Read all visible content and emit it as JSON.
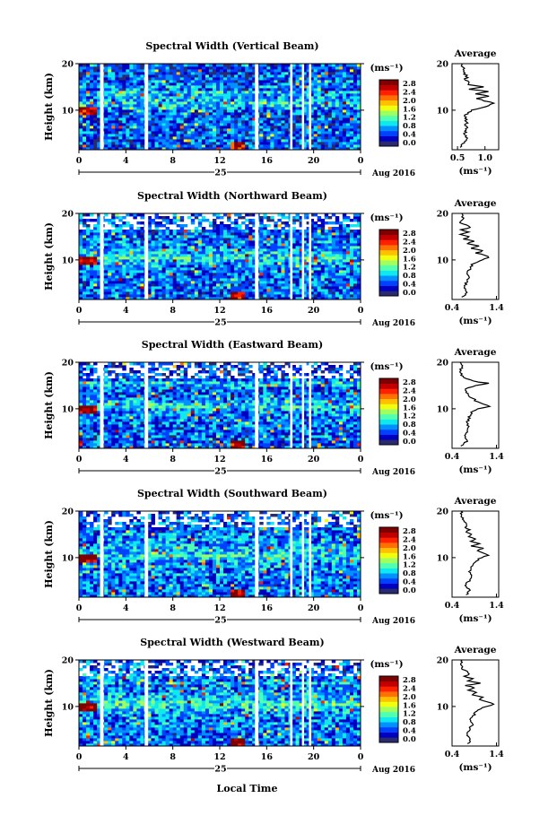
{
  "figure": {
    "xlabel": "Local Time",
    "date_label": "Aug 2016",
    "day_label": "25",
    "unit_label": "(ms⁻¹)",
    "height_label": "Height (km)",
    "average_title": "Average",
    "average_unit": "(ms⁻¹)",
    "colors": {
      "colormap": [
        "#7f0000",
        "#c00000",
        "#ff2000",
        "#ff7000",
        "#ffc000",
        "#f0ff10",
        "#a0ff60",
        "#50ffb0",
        "#10e8f0",
        "#0090ff",
        "#0040ff",
        "#0000c0",
        "#2a2a70"
      ],
      "missing": "#ffffff"
    }
  },
  "chart_data": [
    {
      "type": "heatmap",
      "title": "Spectral Width (Vertical Beam)",
      "xlabel": "Local Time",
      "ylabel": "Height (km)",
      "x_ticks": [
        "0",
        "4",
        "8",
        "12",
        "16",
        "20",
        "0"
      ],
      "xlim": [
        0,
        24
      ],
      "y_ticks": [
        "10",
        "20"
      ],
      "ylim": [
        1.5,
        20
      ],
      "colorbar": {
        "unit": "(ms⁻¹)",
        "ticks": [
          "0.0",
          "0.4",
          "0.8",
          "1.2",
          "1.6",
          "2.0",
          "2.4",
          "2.8"
        ],
        "range": [
          0,
          2.8
        ]
      },
      "missing_time_bands_hours": [
        [
          1.8,
          2.1
        ],
        [
          5.6,
          5.9
        ],
        [
          15.0,
          15.3
        ],
        [
          18.0,
          18.2
        ],
        [
          19.0,
          19.15
        ],
        [
          19.6,
          19.8
        ]
      ],
      "profile": {
        "type": "line",
        "title": "Average",
        "xlabel": "(ms⁻¹)",
        "x_ticks": [
          "0.5",
          "1.0"
        ],
        "xlim": [
          0.4,
          1.25
        ],
        "y_ticks": [
          "10",
          "20"
        ],
        "ylim": [
          1.5,
          20
        ],
        "height": [
          2,
          3,
          4,
          5,
          6,
          7,
          8,
          9,
          10,
          10.5,
          11,
          11.5,
          12,
          12.5,
          13,
          13.5,
          14,
          14.5,
          15,
          15.5,
          16,
          16.5,
          17,
          18,
          19,
          20
        ],
        "values": [
          0.55,
          0.62,
          0.66,
          0.64,
          0.66,
          0.66,
          0.66,
          0.64,
          0.78,
          0.92,
          1.05,
          1.18,
          0.98,
          0.85,
          1.1,
          0.82,
          1.08,
          0.72,
          1.0,
          0.7,
          0.74,
          0.62,
          0.68,
          0.62,
          0.6,
          0.58
        ]
      }
    },
    {
      "type": "heatmap",
      "title": "Spectral Width (Northward Beam)",
      "xlabel": "Local Time",
      "ylabel": "Height (km)",
      "x_ticks": [
        "0",
        "4",
        "8",
        "12",
        "16",
        "20",
        "0"
      ],
      "xlim": [
        0,
        24
      ],
      "y_ticks": [
        "10",
        "20"
      ],
      "ylim": [
        1.5,
        20
      ],
      "colorbar": {
        "unit": "(ms⁻¹)",
        "ticks": [
          "0.0",
          "0.4",
          "0.8",
          "1.2",
          "1.6",
          "2.0",
          "2.4",
          "2.8"
        ],
        "range": [
          0,
          2.8
        ]
      },
      "missing_time_bands_hours": [
        [
          1.8,
          2.1
        ],
        [
          5.6,
          5.9
        ],
        [
          15.0,
          15.3
        ],
        [
          18.0,
          18.2
        ],
        [
          19.0,
          19.15
        ],
        [
          19.6,
          19.8
        ]
      ],
      "profile": {
        "type": "line",
        "title": "Average",
        "xlabel": "(ms⁻¹)",
        "x_ticks": [
          "0.4",
          "1.4"
        ],
        "xlim": [
          0.4,
          1.45
        ],
        "y_ticks": [
          "10",
          "20"
        ],
        "ylim": [
          1.5,
          20
        ],
        "height": [
          2,
          3,
          4,
          5,
          6,
          7,
          8,
          9,
          10,
          10.5,
          11,
          11.5,
          12,
          12.5,
          13,
          13.5,
          14,
          14.5,
          15,
          15.5,
          16,
          16.5,
          17,
          18,
          19,
          20
        ],
        "values": [
          0.62,
          0.75,
          0.68,
          0.72,
          0.78,
          0.72,
          0.8,
          0.85,
          1.05,
          1.25,
          1.12,
          0.95,
          1.1,
          0.8,
          1.0,
          0.72,
          0.9,
          0.65,
          0.8,
          0.6,
          0.75,
          0.62,
          0.82,
          0.6,
          0.65,
          0.6
        ]
      }
    },
    {
      "type": "heatmap",
      "title": "Spectral Width (Eastward Beam)",
      "xlabel": "Local Time",
      "ylabel": "Height (km)",
      "x_ticks": [
        "0",
        "4",
        "8",
        "12",
        "16",
        "20",
        "0"
      ],
      "xlim": [
        0,
        24
      ],
      "y_ticks": [
        "10",
        "20"
      ],
      "ylim": [
        1.5,
        20
      ],
      "colorbar": {
        "unit": "(ms⁻¹)",
        "ticks": [
          "0.0",
          "0.4",
          "0.8",
          "1.2",
          "1.6",
          "2.0",
          "2.4",
          "2.8"
        ],
        "range": [
          0,
          2.8
        ]
      },
      "missing_time_bands_hours": [
        [
          1.8,
          2.1
        ],
        [
          5.6,
          5.9
        ],
        [
          15.0,
          15.3
        ],
        [
          18.0,
          18.2
        ],
        [
          19.0,
          19.15
        ],
        [
          19.6,
          19.8
        ]
      ],
      "profile": {
        "type": "line",
        "title": "Average",
        "xlabel": "(ms⁻¹)",
        "x_ticks": [
          "0.4",
          "1.4"
        ],
        "xlim": [
          0.4,
          1.45
        ],
        "y_ticks": [
          "10",
          "20"
        ],
        "ylim": [
          1.5,
          20
        ],
        "height": [
          2,
          3,
          4,
          5,
          6,
          7,
          8,
          9,
          10,
          10.5,
          11,
          11.5,
          12,
          12.5,
          13,
          13.5,
          14,
          14.5,
          15,
          15.5,
          16,
          16.5,
          17,
          18,
          19,
          20
        ],
        "values": [
          0.6,
          0.72,
          0.68,
          0.72,
          0.76,
          0.74,
          0.78,
          0.82,
          0.95,
          1.25,
          1.1,
          0.95,
          0.9,
          0.8,
          0.78,
          0.72,
          0.68,
          0.75,
          0.95,
          1.2,
          0.85,
          0.72,
          0.62,
          0.58,
          0.62,
          0.6
        ]
      }
    },
    {
      "type": "heatmap",
      "title": "Spectral Width (Southward Beam)",
      "xlabel": "Local Time",
      "ylabel": "Height (km)",
      "x_ticks": [
        "0",
        "4",
        "8",
        "12",
        "16",
        "20",
        "0"
      ],
      "xlim": [
        0,
        24
      ],
      "y_ticks": [
        "10",
        "20"
      ],
      "ylim": [
        1.5,
        20
      ],
      "colorbar": {
        "unit": "(ms⁻¹)",
        "ticks": [
          "0.0",
          "0.4",
          "0.8",
          "1.2",
          "1.6",
          "2.0",
          "2.4",
          "2.8"
        ],
        "range": [
          0,
          2.8
        ]
      },
      "missing_time_bands_hours": [
        [
          1.8,
          2.1
        ],
        [
          5.6,
          5.9
        ],
        [
          15.0,
          15.3
        ],
        [
          18.0,
          18.2
        ],
        [
          19.0,
          19.15
        ],
        [
          19.6,
          19.8
        ]
      ],
      "profile": {
        "type": "line",
        "title": "Average",
        "xlabel": "(ms⁻¹)",
        "x_ticks": [
          "0.4",
          "1.4"
        ],
        "xlim": [
          0.4,
          1.45
        ],
        "y_ticks": [
          "10",
          "20"
        ],
        "ylim": [
          1.5,
          20
        ],
        "height": [
          2,
          3,
          4,
          5,
          6,
          7,
          8,
          9,
          10,
          10.5,
          11,
          11.5,
          12,
          12.5,
          13,
          13.5,
          14,
          14.5,
          15,
          15.5,
          16,
          16.5,
          17,
          18,
          19,
          20
        ],
        "values": [
          0.72,
          0.8,
          0.7,
          0.78,
          0.82,
          0.8,
          0.85,
          0.9,
          1.05,
          1.2,
          1.1,
          0.95,
          1.1,
          0.85,
          1.0,
          0.8,
          0.95,
          0.75,
          0.85,
          0.7,
          0.78,
          0.68,
          0.72,
          0.65,
          0.62,
          0.6
        ]
      }
    },
    {
      "type": "heatmap",
      "title": "Spectral Width (Westward Beam)",
      "xlabel": "Local Time",
      "ylabel": "Height (km)",
      "x_ticks": [
        "0",
        "4",
        "8",
        "12",
        "16",
        "20",
        "0"
      ],
      "xlim": [
        0,
        24
      ],
      "y_ticks": [
        "10",
        "20"
      ],
      "ylim": [
        1.5,
        20
      ],
      "colorbar": {
        "unit": "(ms⁻¹)",
        "ticks": [
          "0.0",
          "0.4",
          "0.8",
          "1.2",
          "1.6",
          "2.0",
          "2.4",
          "2.8"
        ],
        "range": [
          0,
          2.8
        ]
      },
      "missing_time_bands_hours": [
        [
          1.8,
          2.1
        ],
        [
          5.6,
          5.9
        ],
        [
          15.0,
          15.3
        ],
        [
          18.0,
          18.2
        ],
        [
          19.0,
          19.15
        ],
        [
          19.6,
          19.8
        ]
      ],
      "profile": {
        "type": "line",
        "title": "Average",
        "xlabel": "(ms⁻¹)",
        "x_ticks": [
          "0.4",
          "1.4"
        ],
        "xlim": [
          0.4,
          1.45
        ],
        "y_ticks": [
          "10",
          "20"
        ],
        "ylim": [
          1.5,
          20
        ],
        "height": [
          2,
          3,
          4,
          5,
          6,
          7,
          8,
          9,
          10,
          10.5,
          11,
          11.5,
          12,
          12.5,
          13,
          13.5,
          14,
          14.5,
          15,
          15.5,
          16,
          16.5,
          17,
          18,
          19,
          20
        ],
        "values": [
          0.75,
          0.82,
          0.72,
          0.78,
          0.85,
          0.8,
          0.88,
          0.95,
          1.15,
          1.35,
          1.2,
          1.0,
          1.1,
          0.85,
          0.95,
          0.78,
          0.9,
          0.72,
          1.05,
          0.75,
          0.85,
          0.7,
          0.8,
          0.65,
          0.62,
          0.6
        ]
      }
    }
  ]
}
